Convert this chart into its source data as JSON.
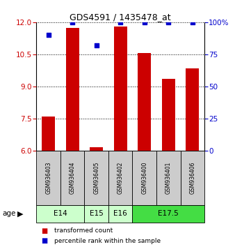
{
  "title": "GDS4591 / 1435478_at",
  "samples": [
    "GSM936403",
    "GSM936404",
    "GSM936405",
    "GSM936402",
    "GSM936400",
    "GSM936401",
    "GSM936406"
  ],
  "transformed_counts": [
    7.6,
    11.75,
    6.15,
    11.8,
    10.55,
    9.35,
    9.85
  ],
  "percentile_ranks": [
    90,
    100,
    82,
    100,
    100,
    100,
    100
  ],
  "ylim_left": [
    6,
    12
  ],
  "ylim_right": [
    0,
    100
  ],
  "yticks_left": [
    6,
    7.5,
    9,
    10.5,
    12
  ],
  "yticks_right": [
    0,
    25,
    50,
    75,
    100
  ],
  "age_groups": [
    {
      "label": "E14",
      "cols": [
        0,
        1
      ],
      "color": "#ccffcc"
    },
    {
      "label": "E15",
      "cols": [
        2
      ],
      "color": "#ccffcc"
    },
    {
      "label": "E16",
      "cols": [
        3
      ],
      "color": "#ccffcc"
    },
    {
      "label": "E17.5",
      "cols": [
        4,
        5,
        6
      ],
      "color": "#44dd44"
    }
  ],
  "bar_color": "#cc0000",
  "dot_color": "#0000cc",
  "bar_width": 0.55,
  "background_color": "#ffffff",
  "left_axis_color": "#cc0000",
  "right_axis_color": "#0000cc",
  "sample_box_color": "#cccccc",
  "legend_red_label": "transformed count",
  "legend_blue_label": "percentile rank within the sample",
  "age_label": "age"
}
